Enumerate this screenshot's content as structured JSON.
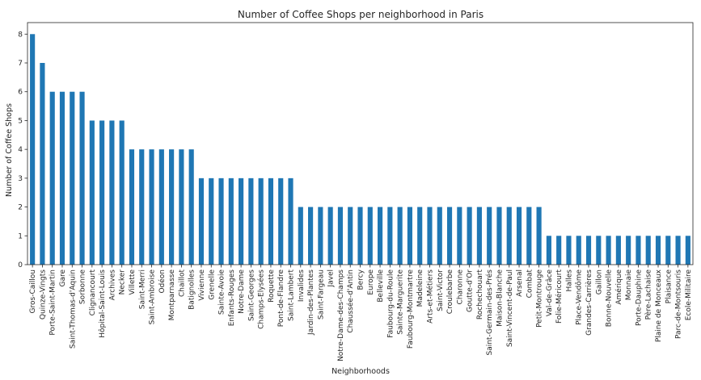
{
  "chart_data": {
    "type": "bar",
    "title": "Number of Coffee Shops per neighborhood in Paris",
    "xlabel": "Neighborhoods",
    "ylabel": "Number of Coffee Shops",
    "ylim": [
      0,
      8.4
    ],
    "yticks": [
      0,
      1,
      2,
      3,
      4,
      5,
      6,
      7,
      8
    ],
    "grid": false,
    "legend": "none",
    "bar_color": "#1f77b4",
    "categories": [
      "Gros-Caillou",
      "Quinze-Vingts",
      "Porte-Saint-Martin",
      "Gare",
      "Saint-Thomas-d'Aquin",
      "Sorbonne",
      "Clignancourt",
      "Hôpital-Saint-Louis",
      "Archives",
      "Necker",
      "Villette",
      "Saint-Merri",
      "Saint-Ambroise",
      "Odéon",
      "Montparnasse",
      "Chaillot",
      "Batignolles",
      "Vivienne",
      "Grenelle",
      "Sainte-Avoie",
      "Enfants-Rouges",
      "Notre-Dame",
      "Saint-Georges",
      "Champs-Elysées",
      "Roquette",
      "Pont-de-Flandre",
      "Saint-Lambert",
      "Invalides",
      "Jardin-des-Plantes",
      "Saint-Fargeau",
      "Javel",
      "Notre-Dame-des-Champs",
      "Chaussée-d'Antin",
      "Bercy",
      "Europe",
      "Belleville",
      "Faubourg-du-Roule",
      "Sainte-Marguerite",
      "Faubourg-Montmartre",
      "Madeleine",
      "Arts-et-Métiers",
      "Saint-Victor",
      "Croulebarbe",
      "Charonne",
      "Goutte-d'Or",
      "Rochechouart",
      "Saint-Germain-des-Prés",
      "Maison-Blanche",
      "Saint-Vincent-de-Paul",
      "Arsenal",
      "Combat",
      "Petit-Montrouge",
      "Val-de-Grâce",
      "Folie-Méricourt",
      "Halles",
      "Place-Vendôme",
      "Grandes-Carrières",
      "Gaillon",
      "Bonne-Nouvelle",
      "Amérique",
      "Monnaie",
      "Porte-Dauphine",
      "Père-Lachaise",
      "Plaine de Monceaux",
      "Plaisance",
      "Parc-de-Montsouris",
      "Ecole-Militaire"
    ],
    "values": [
      8,
      7,
      6,
      6,
      6,
      6,
      5,
      5,
      5,
      5,
      4,
      4,
      4,
      4,
      4,
      4,
      4,
      3,
      3,
      3,
      3,
      3,
      3,
      3,
      3,
      3,
      3,
      2,
      2,
      2,
      2,
      2,
      2,
      2,
      2,
      2,
      2,
      2,
      2,
      2,
      2,
      2,
      2,
      2,
      2,
      2,
      2,
      2,
      2,
      2,
      2,
      2,
      1,
      1,
      1,
      1,
      1,
      1,
      1,
      1,
      1,
      1,
      1,
      1,
      1,
      1,
      1
    ]
  }
}
